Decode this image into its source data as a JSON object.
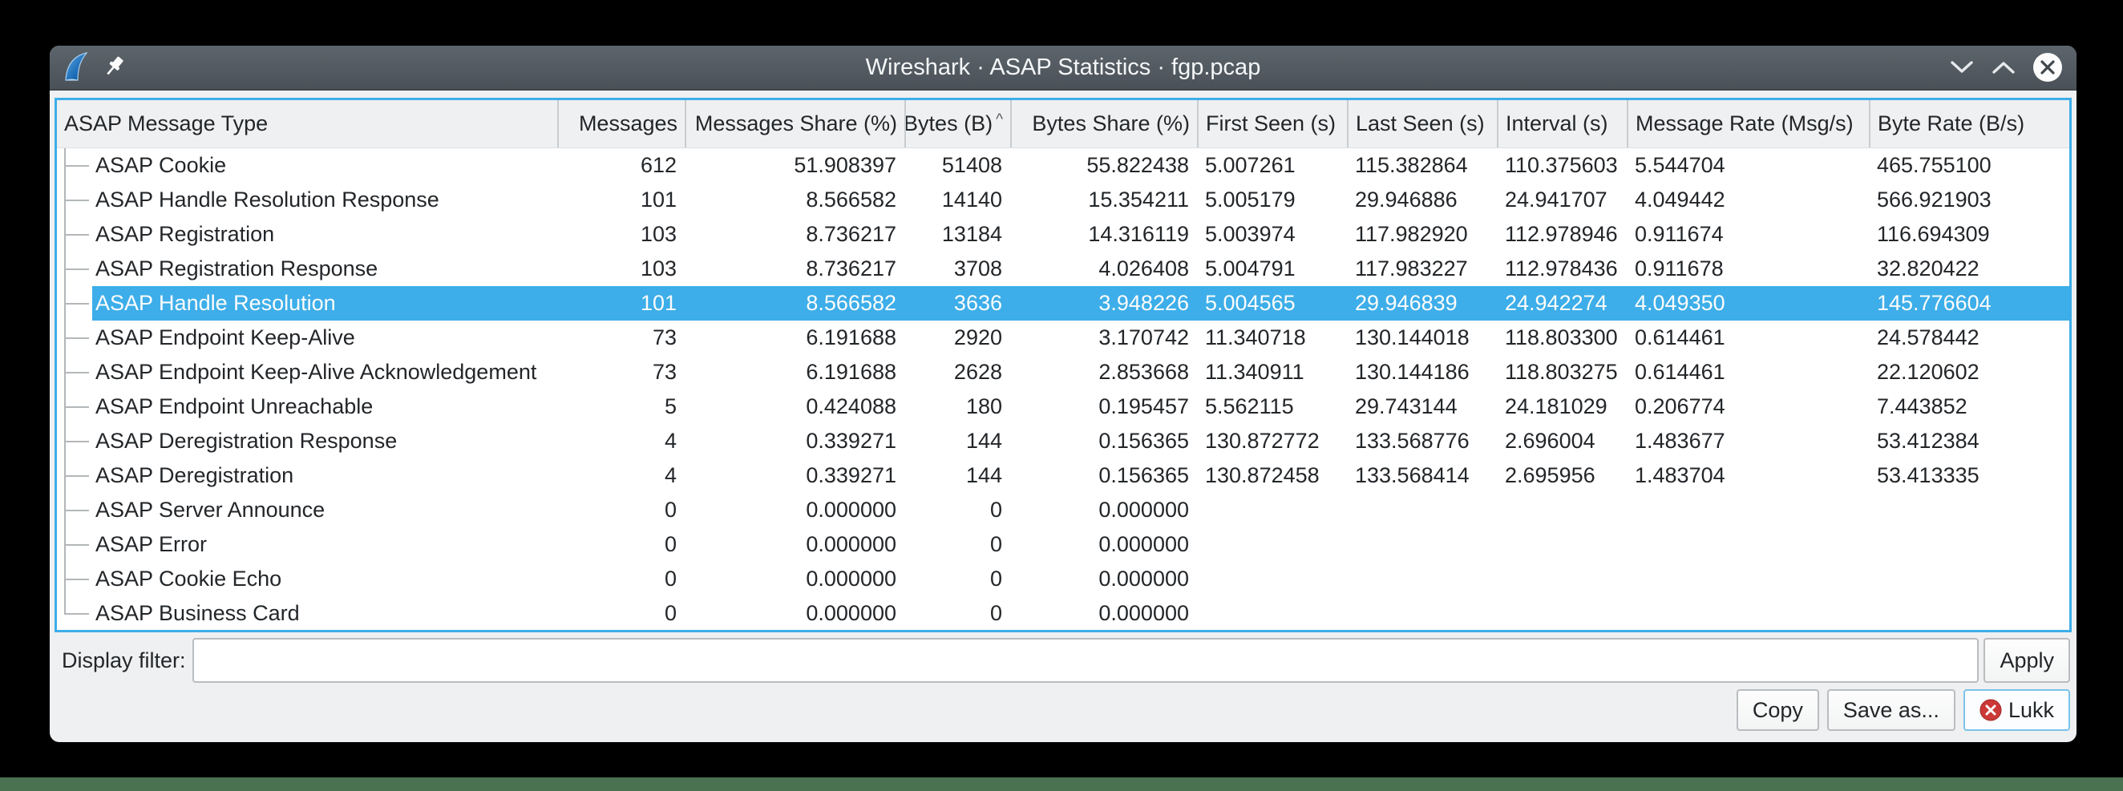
{
  "window": {
    "title": "Wireshark · ASAP Statistics · fgp.pcap"
  },
  "colors": {
    "accent": "#3daee9",
    "selection_background": "#3daee9",
    "selection_text": "#fcfcfc",
    "titlebar": "#525a61",
    "close_icon_red": "#cb3837",
    "desktop_strip_green": "#4a7150"
  },
  "table": {
    "columns": [
      {
        "label": "ASAP Message Type"
      },
      {
        "label": "Messages"
      },
      {
        "label": "Messages Share (%)"
      },
      {
        "label": "Bytes (B)",
        "sort_indicator": "^"
      },
      {
        "label": "Bytes Share (%)"
      },
      {
        "label": "First Seen (s)"
      },
      {
        "label": "Last Seen (s)"
      },
      {
        "label": "Interval (s)"
      },
      {
        "label": "Message Rate (Msg/s)"
      },
      {
        "label": "Byte Rate (B/s)"
      }
    ],
    "selected_row_index": 4,
    "rows": [
      [
        "ASAP Cookie",
        "612",
        "51.908397",
        "51408",
        "55.822438",
        "5.007261",
        "115.382864",
        "110.375603",
        "5.544704",
        "465.755100"
      ],
      [
        "ASAP Handle Resolution Response",
        "101",
        "8.566582",
        "14140",
        "15.354211",
        "5.005179",
        "29.946886",
        "24.941707",
        "4.049442",
        "566.921903"
      ],
      [
        "ASAP Registration",
        "103",
        "8.736217",
        "13184",
        "14.316119",
        "5.003974",
        "117.982920",
        "112.978946",
        "0.911674",
        "116.694309"
      ],
      [
        "ASAP Registration Response",
        "103",
        "8.736217",
        "3708",
        "4.026408",
        "5.004791",
        "117.983227",
        "112.978436",
        "0.911678",
        "32.820422"
      ],
      [
        "ASAP Handle Resolution",
        "101",
        "8.566582",
        "3636",
        "3.948226",
        "5.004565",
        "29.946839",
        "24.942274",
        "4.049350",
        "145.776604"
      ],
      [
        "ASAP Endpoint Keep-Alive",
        "73",
        "6.191688",
        "2920",
        "3.170742",
        "11.340718",
        "130.144018",
        "118.803300",
        "0.614461",
        "24.578442"
      ],
      [
        "ASAP Endpoint Keep-Alive Acknowledgement",
        "73",
        "6.191688",
        "2628",
        "2.853668",
        "11.340911",
        "130.144186",
        "118.803275",
        "0.614461",
        "22.120602"
      ],
      [
        "ASAP Endpoint Unreachable",
        "5",
        "0.424088",
        "180",
        "0.195457",
        "5.562115",
        "29.743144",
        "24.181029",
        "0.206774",
        "7.443852"
      ],
      [
        "ASAP Deregistration Response",
        "4",
        "0.339271",
        "144",
        "0.156365",
        "130.872772",
        "133.568776",
        "2.696004",
        "1.483677",
        "53.412384"
      ],
      [
        "ASAP Deregistration",
        "4",
        "0.339271",
        "144",
        "0.156365",
        "130.872458",
        "133.568414",
        "2.695956",
        "1.483704",
        "53.413335"
      ],
      [
        "ASAP Server Announce",
        "0",
        "0.000000",
        "0",
        "0.000000",
        "",
        "",
        "",
        "",
        ""
      ],
      [
        "ASAP Error",
        "0",
        "0.000000",
        "0",
        "0.000000",
        "",
        "",
        "",
        "",
        ""
      ],
      [
        "ASAP Cookie Echo",
        "0",
        "0.000000",
        "0",
        "0.000000",
        "",
        "",
        "",
        "",
        ""
      ],
      [
        "ASAP Business Card",
        "0",
        "0.000000",
        "0",
        "0.000000",
        "",
        "",
        "",
        "",
        ""
      ]
    ]
  },
  "filter": {
    "label": "Display filter:",
    "value": "",
    "apply_label": "Apply"
  },
  "buttons": {
    "copy": "Copy",
    "save_as": "Save as...",
    "close": "Lukk"
  }
}
